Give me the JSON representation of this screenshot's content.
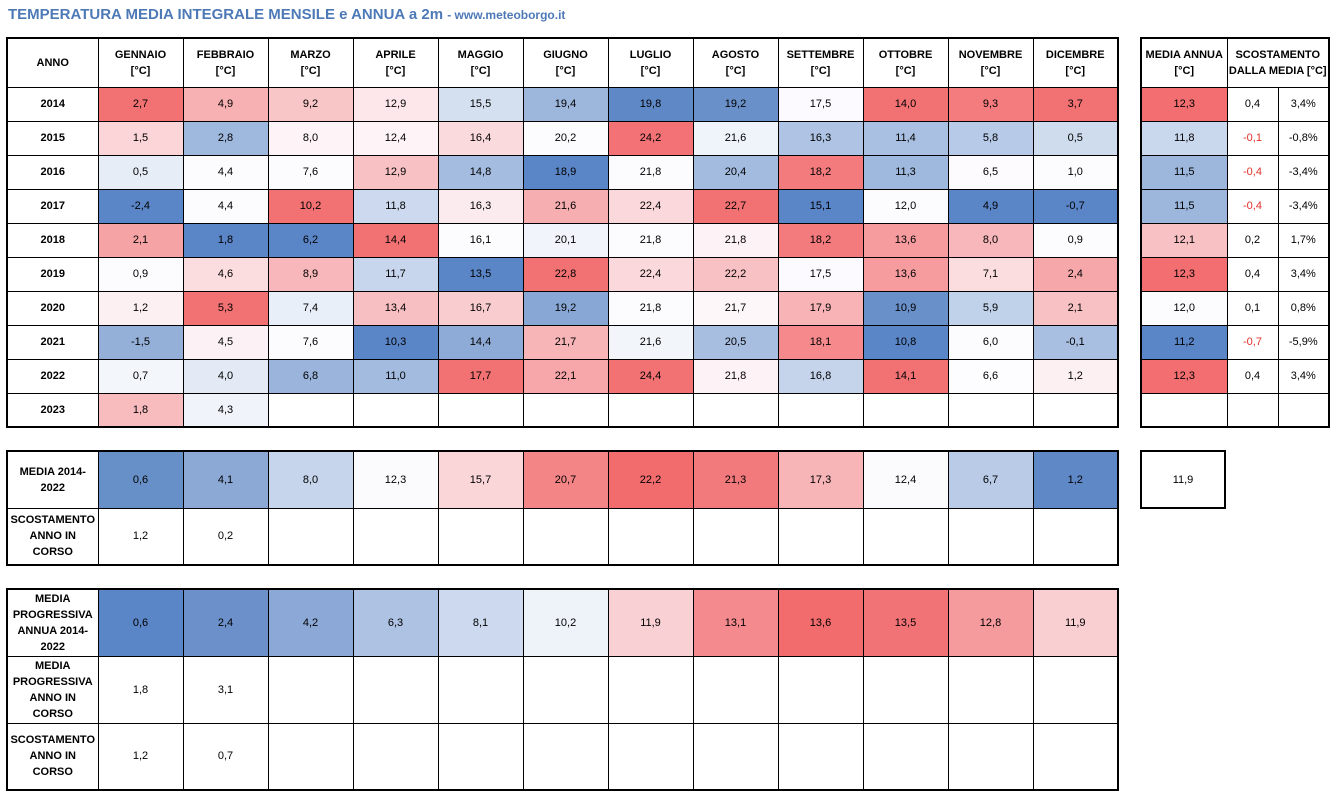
{
  "title": {
    "main": "TEMPERATURA MEDIA INTEGRALE MENSILE e ANNUA a 2m",
    "site": "- www.meteoborgo.it"
  },
  "header": {
    "anno": "ANNO",
    "months": [
      "GENNAIO",
      "FEBBRAIO",
      "MARZO",
      "APRILE",
      "MAGGIO",
      "GIUGNO",
      "LUGLIO",
      "AGOSTO",
      "SETTEMBRE",
      "OTTOBRE",
      "NOVEMBRE",
      "DICEMBRE"
    ],
    "unit": "[°C]",
    "media_annua": "MEDIA ANNUA [°C]",
    "scostamento": "SCOSTAMENTO DALLA MEDIA [°C]"
  },
  "rows": [
    {
      "year": "2014",
      "values": [
        "2,7",
        "4,9",
        "9,2",
        "12,9",
        "15,5",
        "19,4",
        "19,8",
        "19,2",
        "17,5",
        "14,0",
        "9,3",
        "3,7"
      ],
      "colors": [
        "#f27173",
        "#f7b1b3",
        "#f9c6c8",
        "#fde7ea",
        "#d4e0f0",
        "#9db6dc",
        "#5f88c7",
        "#6a90ca",
        "#fdfaff",
        "#f27173",
        "#f47c7e",
        "#f27173"
      ],
      "media": "12,3",
      "media_color": "#f26e70",
      "diff": "0,4",
      "pct": "3,4%"
    },
    {
      "year": "2015",
      "values": [
        "1,5",
        "2,8",
        "8,0",
        "12,4",
        "16,4",
        "20,2",
        "24,2",
        "21,6",
        "16,3",
        "11,4",
        "5,8",
        "0,5"
      ],
      "colors": [
        "#fbd5d8",
        "#9fb8dd",
        "#fef3f6",
        "#fef4f7",
        "#fbdade",
        "#fcfcff",
        "#f27275",
        "#eff3fa",
        "#afc4e4",
        "#aac0e2",
        "#b7cae7",
        "#cfdcee"
      ],
      "media": "11,8",
      "media_color": "#c9d8ed",
      "diff": "-0,1",
      "pct": "-0,8%"
    },
    {
      "year": "2016",
      "values": [
        "0,5",
        "4,4",
        "7,6",
        "12,9",
        "14,8",
        "18,9",
        "21,8",
        "20,4",
        "18,2",
        "11,3",
        "6,5",
        "1,0"
      ],
      "colors": [
        "#e7edf7",
        "#fcfcff",
        "#fcfcff",
        "#f8c1c4",
        "#a4bce0",
        "#5a85c6",
        "#fcfcff",
        "#a3bbdf",
        "#f47b7d",
        "#9fb8dd",
        "#fdfbfe",
        "#fcfcff"
      ],
      "media": "11,5",
      "media_color": "#9db6dc",
      "diff": "-0,4",
      "pct": "-3,4%"
    },
    {
      "year": "2017",
      "values": [
        "-2,4",
        "4,4",
        "10,2",
        "11,8",
        "16,3",
        "21,6",
        "22,4",
        "22,7",
        "15,1",
        "12,0",
        "4,9",
        "-0,7"
      ],
      "colors": [
        "#5a85c6",
        "#fcfcff",
        "#f27173",
        "#ccd9ee",
        "#fcebee",
        "#f7aeb1",
        "#fbd8db",
        "#f27173",
        "#5a85c6",
        "#fcfcff",
        "#5a85c6",
        "#5a85c6"
      ],
      "media": "11,5",
      "media_color": "#9db6dc",
      "diff": "-0,4",
      "pct": "-3,4%"
    },
    {
      "year": "2018",
      "values": [
        "2,1",
        "1,8",
        "6,2",
        "14,4",
        "16,1",
        "20,1",
        "21,8",
        "21,8",
        "18,2",
        "13,6",
        "8,0",
        "0,9"
      ],
      "colors": [
        "#f6a3a6",
        "#5a85c6",
        "#5a85c6",
        "#f27173",
        "#fcfcff",
        "#f1f5fb",
        "#fcfcff",
        "#fdf2f5",
        "#f47b7d",
        "#f69c9f",
        "#f8b8bb",
        "#fcfcff"
      ],
      "media": "12,1",
      "media_color": "#f8c2c5",
      "diff": "0,2",
      "pct": "1,7%"
    },
    {
      "year": "2019",
      "values": [
        "0,9",
        "4,6",
        "8,9",
        "11,7",
        "13,5",
        "22,8",
        "22,4",
        "22,2",
        "17,5",
        "13,6",
        "7,1",
        "2,4"
      ],
      "colors": [
        "#fcfcff",
        "#fbdde0",
        "#f8b7ba",
        "#c7d6ec",
        "#5a85c6",
        "#f27173",
        "#fbd8db",
        "#f8c1c4",
        "#fdfaff",
        "#f69c9f",
        "#fbdde0",
        "#f6a7aa"
      ],
      "media": "12,3",
      "media_color": "#f26e70",
      "diff": "0,4",
      "pct": "3,4%"
    },
    {
      "year": "2020",
      "values": [
        "1,2",
        "5,3",
        "7,4",
        "13,4",
        "16,7",
        "19,2",
        "21,8",
        "21,7",
        "17,9",
        "10,9",
        "5,9",
        "2,1"
      ],
      "colors": [
        "#fdf0f3",
        "#f27173",
        "#e9eff8",
        "#f8bfc2",
        "#f9cdd0",
        "#88a7d5",
        "#fcfcff",
        "#fdf7fa",
        "#f7b3b6",
        "#6a90ca",
        "#c0d1ea",
        "#f8c1c4"
      ],
      "media": "12,0",
      "media_color": "#fcfcff",
      "diff": "0,1",
      "pct": "0,8%"
    },
    {
      "year": "2021",
      "values": [
        "-1,5",
        "4,5",
        "7,6",
        "10,3",
        "14,4",
        "21,7",
        "21,6",
        "20,5",
        "18,1",
        "10,8",
        "6,0",
        "-0,1"
      ],
      "colors": [
        "#94b0d9",
        "#fcf2f5",
        "#fcfcff",
        "#5a85c6",
        "#8eabd7",
        "#f8b5b8",
        "#f2f6fb",
        "#a8bee1",
        "#f5898c",
        "#5a85c6",
        "#fcfcff",
        "#a9bfe1"
      ],
      "media": "11,2",
      "media_color": "#5a85c6",
      "diff": "-0,7",
      "pct": "-5,9%"
    },
    {
      "year": "2022",
      "values": [
        "0,7",
        "4,0",
        "6,8",
        "11,0",
        "17,7",
        "22,1",
        "24,4",
        "21,8",
        "16,8",
        "14,1",
        "6,6",
        "1,2"
      ],
      "colors": [
        "#f3f6fb",
        "#e3eaf5",
        "#9bb4db",
        "#a2bbdf",
        "#f27173",
        "#f7a7aa",
        "#f27173",
        "#fdf2f5",
        "#c5d4eb",
        "#f27173",
        "#fdfcfe",
        "#fdf0f3"
      ],
      "media": "12,3",
      "media_color": "#f26e70",
      "diff": "0,4",
      "pct": "3,4%"
    },
    {
      "year": "2023",
      "values": [
        "1,8",
        "4,3",
        "",
        "",
        "",
        "",
        "",
        "",
        "",
        "",
        "",
        ""
      ],
      "colors": [
        "#f8bcbf",
        "#f0f4fa",
        "",
        "",
        "",
        "",
        "",
        "",
        "",
        "",
        "",
        ""
      ],
      "media": "",
      "media_color": "",
      "diff": "",
      "pct": ""
    }
  ],
  "media_table": {
    "media_label": "MEDIA 2014-2022",
    "media_values": [
      "0,6",
      "4,1",
      "8,0",
      "12,3",
      "15,7",
      "20,7",
      "22,2",
      "21,3",
      "17,3",
      "12,4",
      "6,7",
      "1,2"
    ],
    "media_colors": [
      "#6790c9",
      "#8ca9d6",
      "#c6d5eb",
      "#fbfbfe",
      "#fbd6d9",
      "#f48587",
      "#f26c6e",
      "#f37a7c",
      "#f8b5b8",
      "#fbfbfe",
      "#b9cbe7",
      "#5f88c7"
    ],
    "scost_label": "SCOSTAMENTO ANNO IN CORSO",
    "scost_values": [
      "1,2",
      "0,2",
      "",
      "",
      "",
      "",
      "",
      "",
      "",
      "",
      "",
      ""
    ],
    "annual_mean": "11,9"
  },
  "progressive_table": {
    "media_label": "MEDIA PROGRESSIVA ANNUA 2014-2022",
    "media_values": [
      "0,6",
      "2,4",
      "4,2",
      "6,3",
      "8,1",
      "10,2",
      "11,9",
      "13,1",
      "13,6",
      "13,5",
      "12,8",
      "11,9"
    ],
    "media_colors": [
      "#5a85c6",
      "#6b90ca",
      "#8ba8d6",
      "#aec3e3",
      "#ccd9ee",
      "#eef3fa",
      "#f9d0d3",
      "#f48a8d",
      "#f26c6e",
      "#f27376",
      "#f59a9d",
      "#f9cfd2"
    ],
    "prog_label": "MEDIA PROGRESSIVA ANNO IN CORSO",
    "prog_values": [
      "1,8",
      "3,1",
      "",
      "",
      "",
      "",
      "",
      "",
      "",
      "",
      "",
      ""
    ],
    "scost_label": "SCOSTAMENTO ANNO IN CORSO",
    "scost_values": [
      "1,2",
      "0,7",
      "",
      "",
      "",
      "",
      "",
      "",
      "",
      "",
      "",
      ""
    ]
  }
}
